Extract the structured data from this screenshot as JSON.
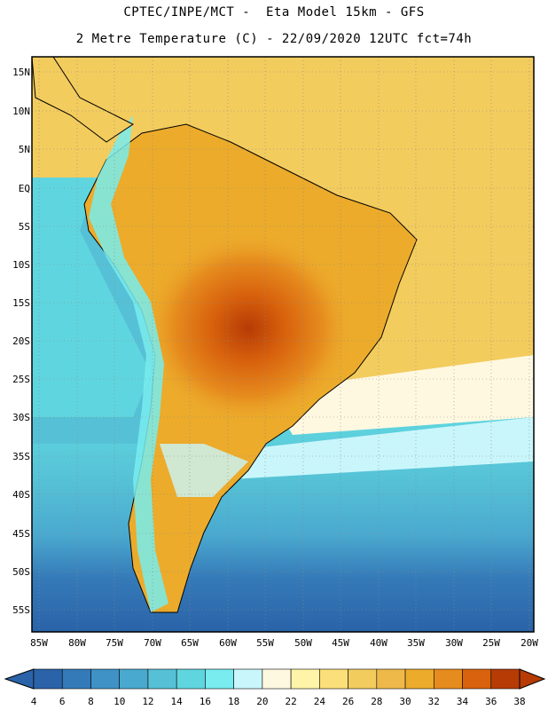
{
  "title_line1": "CPTEC/INPE/MCT -  Eta Model 15km - GFS",
  "title_line2": "2 Metre Temperature (C) - 22/09/2020 12UTC fct=74h",
  "lat_labels": [
    "15N",
    "10N",
    "5N",
    "EQ",
    "5S",
    "10S",
    "15S",
    "20S",
    "25S",
    "30S",
    "35S",
    "40S",
    "45S",
    "50S",
    "55S"
  ],
  "lon_labels": [
    "85W",
    "80W",
    "75W",
    "70W",
    "65W",
    "60W",
    "55W",
    "50W",
    "45W",
    "40W",
    "35W",
    "30W",
    "25W",
    "20W"
  ],
  "colorbar": {
    "labels": [
      "4",
      "6",
      "8",
      "10",
      "12",
      "14",
      "16",
      "18",
      "20",
      "22",
      "24",
      "26",
      "28",
      "30",
      "32",
      "34",
      "36",
      "38"
    ],
    "colors": [
      "#2a63a8",
      "#357ab8",
      "#3f92c6",
      "#4aa9cf",
      "#56c1d6",
      "#5fd6df",
      "#78ecef",
      "#c9f6fb",
      "#fff8e1",
      "#fff4a8",
      "#fbe07a",
      "#f3cc5e",
      "#efb94a",
      "#ecab2b",
      "#e68c1e",
      "#d8620d",
      "#b63b05"
    ],
    "left_arrow_color": "#2a63a8",
    "right_arrow_color": "#b63b05"
  }
}
